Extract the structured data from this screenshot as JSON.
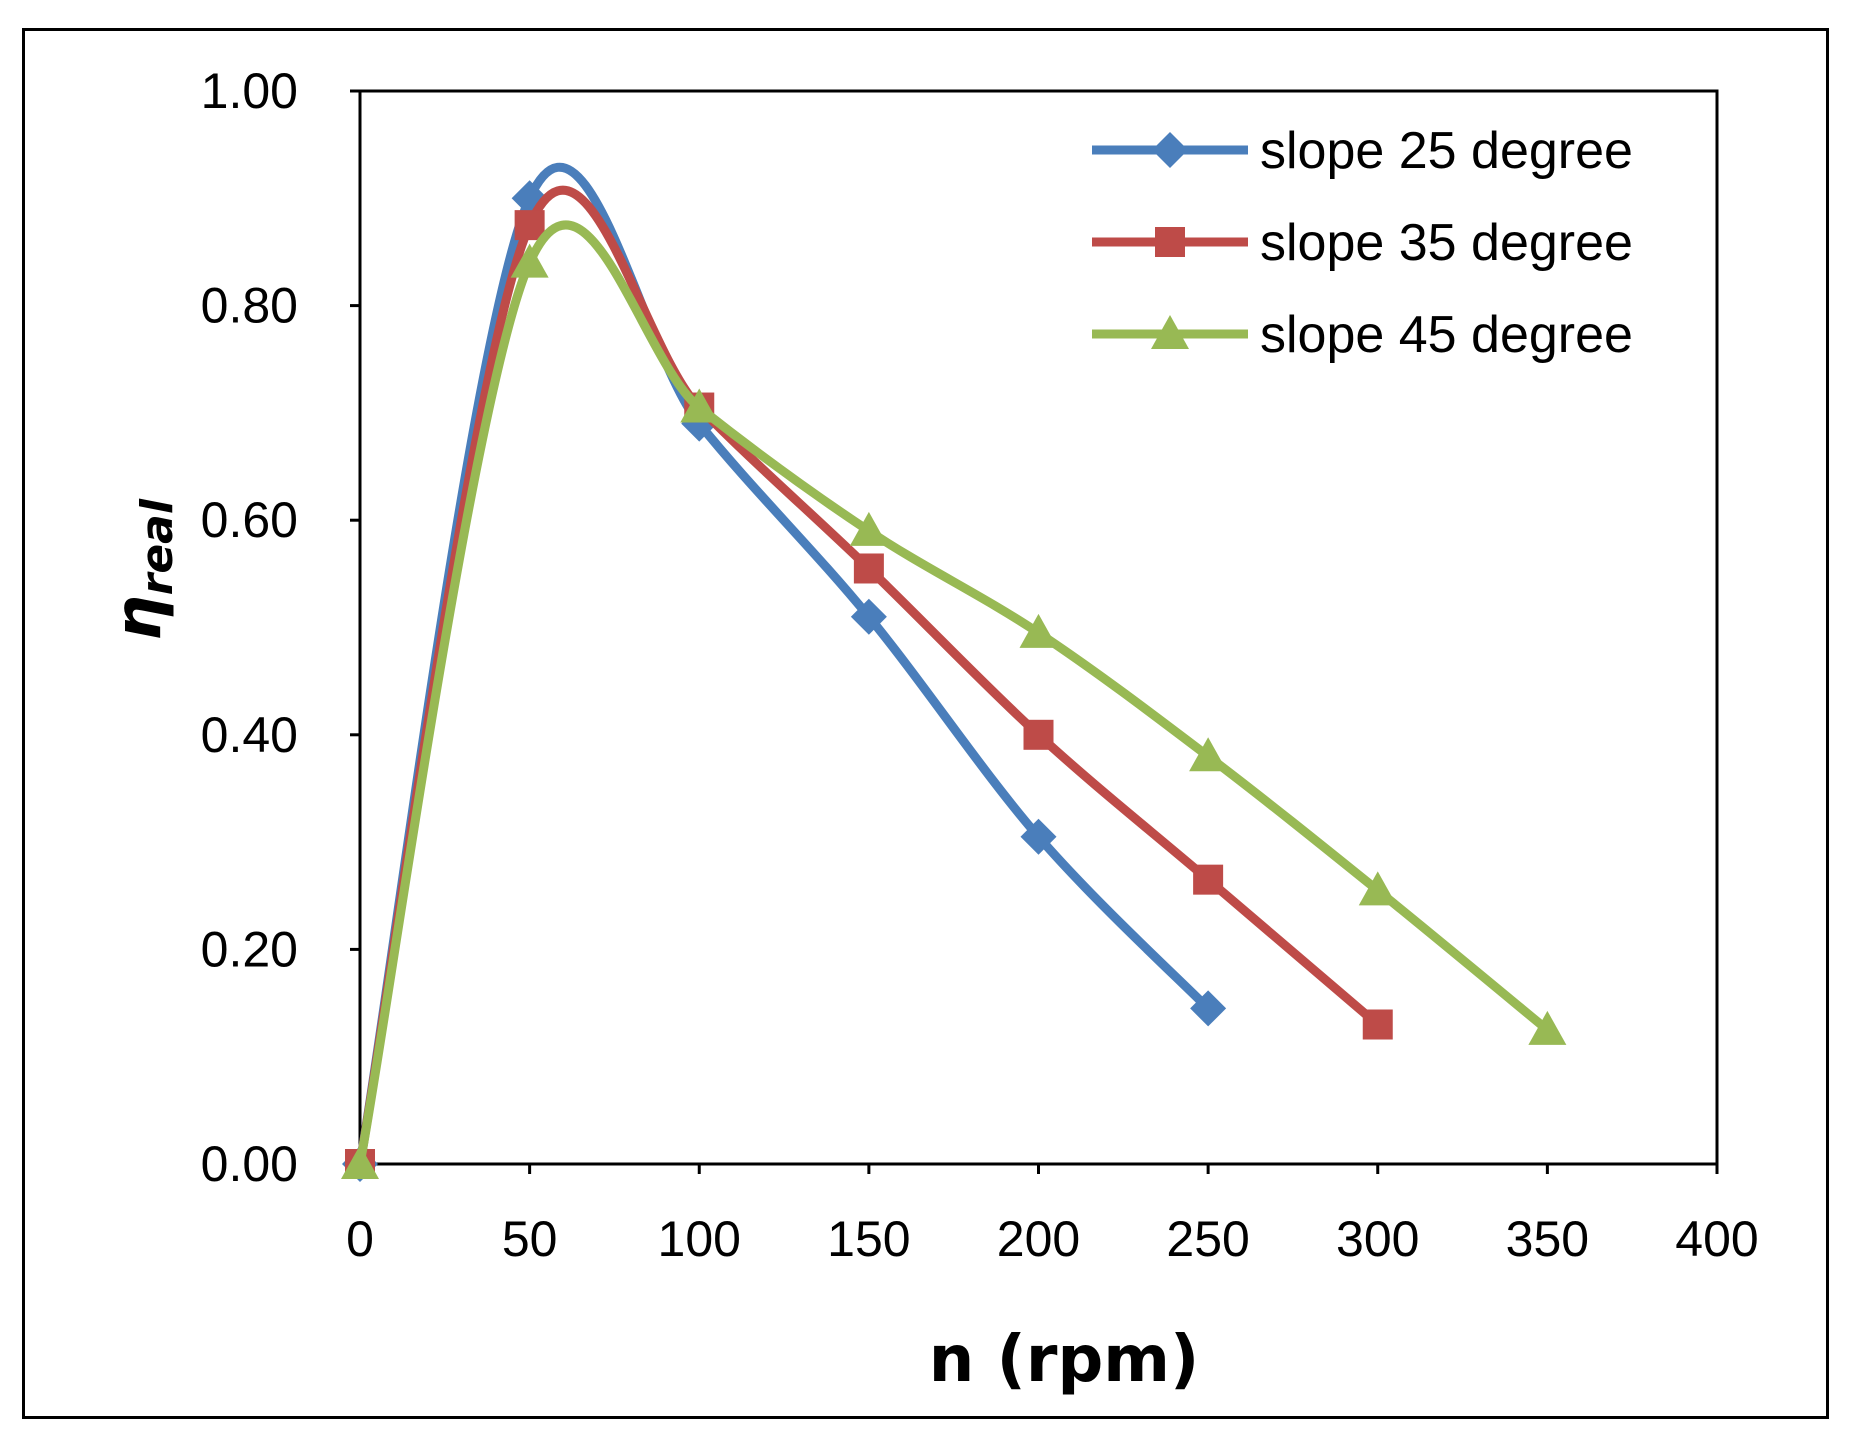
{
  "chart_data": {
    "type": "line",
    "title": "",
    "xlabel": "n  (rpm)",
    "ylabel_symbol": "η",
    "ylabel_subscript": "real",
    "xlim": [
      0,
      400
    ],
    "ylim": [
      0,
      1
    ],
    "x_ticks": [
      "0",
      "50",
      "100",
      "150",
      "200",
      "250",
      "300",
      "350",
      "400"
    ],
    "y_ticks": [
      "0.00",
      "0.20",
      "0.40",
      "0.60",
      "0.80",
      "1.00"
    ],
    "grid": false,
    "legend_position": "top-right",
    "series": [
      {
        "name": "slope 25 degree",
        "color": "#4a7ebb",
        "marker": "diamond",
        "x": [
          0,
          50,
          100,
          150,
          200,
          250
        ],
        "y": [
          0.0,
          0.9,
          0.69,
          0.51,
          0.305,
          0.145
        ]
      },
      {
        "name": "slope 35 degree",
        "color": "#be4b48",
        "marker": "square",
        "x": [
          0,
          50,
          100,
          150,
          200,
          250,
          300
        ],
        "y": [
          0.0,
          0.875,
          0.705,
          0.555,
          0.4,
          0.265,
          0.13
        ]
      },
      {
        "name": "slope 45 degree",
        "color": "#98b954",
        "marker": "triangle",
        "x": [
          0,
          50,
          100,
          150,
          200,
          250,
          300,
          350
        ],
        "y": [
          0.0,
          0.84,
          0.705,
          0.59,
          0.495,
          0.38,
          0.255,
          0.125
        ]
      }
    ]
  }
}
